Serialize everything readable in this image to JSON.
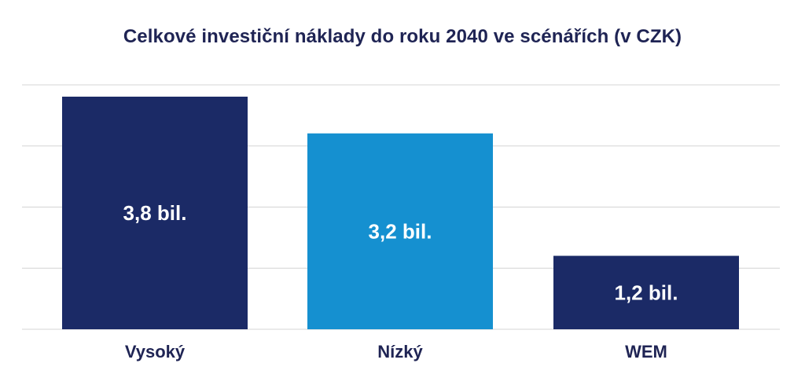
{
  "chart_data": {
    "type": "bar",
    "title": "Celkové investiční náklady do roku 2040 ve scénářích (v CZK)",
    "categories": [
      "Vysoký",
      "Nízký",
      "WEM"
    ],
    "values": [
      3.8,
      3.2,
      1.2
    ],
    "value_labels": [
      "3,8 bil.",
      "3,2 bil.",
      "1,2 bil."
    ],
    "bar_colors": [
      "#1b2a66",
      "#1590d0",
      "#1b2a66"
    ],
    "ylim": [
      0,
      3.8
    ],
    "grid": true,
    "legend": "none",
    "xlabel": "",
    "ylabel": ""
  },
  "colors": {
    "title": "#1f2454",
    "gridline": "#d4d4d4",
    "label_on_bar": "#ffffff"
  }
}
